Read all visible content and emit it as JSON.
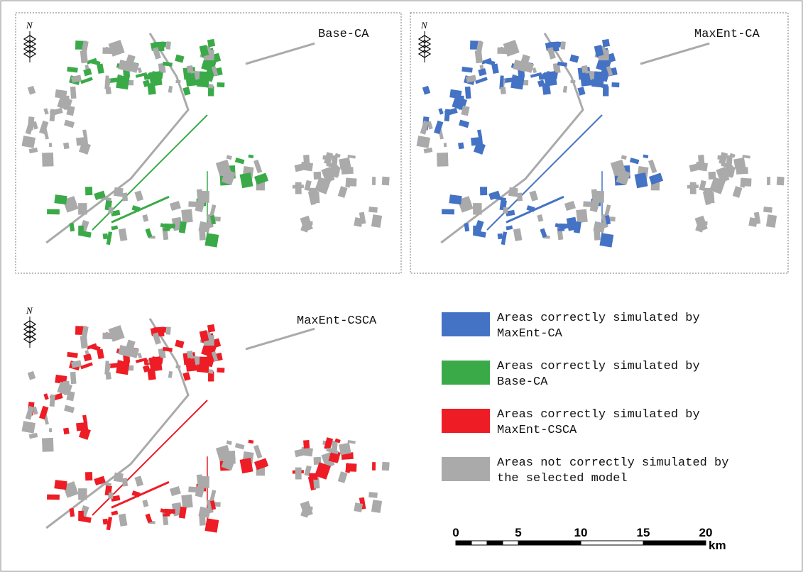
{
  "panels": [
    {
      "label": "Base-CA"
    },
    {
      "label": "MaxEnt-CA"
    },
    {
      "label": "MaxEnt-CSCA"
    }
  ],
  "north": "N",
  "legend": [
    {
      "lines": [
        "Areas correctly simulated by",
        "MaxEnt-CA"
      ],
      "color": "#4472c4"
    },
    {
      "lines": [
        "Areas correctly simulated by",
        "Base-CA"
      ],
      "color": "#3aaa48"
    },
    {
      "lines": [
        "Areas correctly simulated by",
        "MaxEnt-CSCA"
      ],
      "color": "#ee1c25"
    },
    {
      "lines": [
        "Areas not correctly simulated by",
        "the selected model"
      ],
      "color": "#aaaaaa"
    }
  ],
  "scale_bar": {
    "labels": [
      "0",
      "5",
      "10",
      "15",
      "20"
    ],
    "unit": "km"
  }
}
